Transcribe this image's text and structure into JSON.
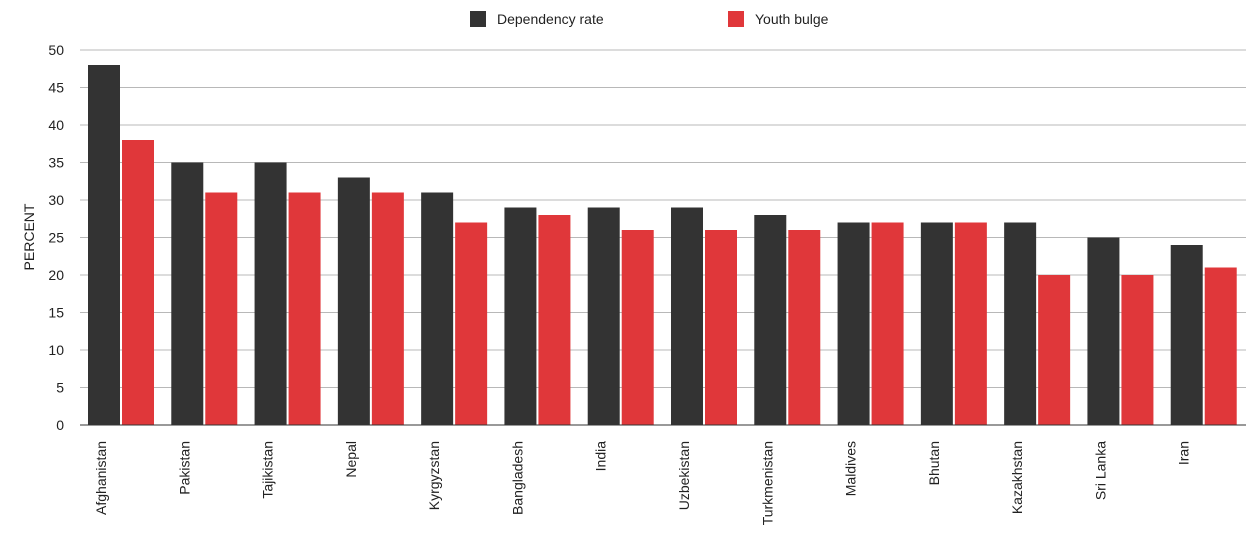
{
  "chart_data": {
    "type": "bar",
    "title": "",
    "xlabel": "",
    "ylabel": "PERCENT",
    "ylim": [
      0,
      50
    ],
    "yticks": [
      0,
      5,
      10,
      15,
      20,
      25,
      30,
      35,
      40,
      45,
      50
    ],
    "grid": true,
    "legend_position": "top-center",
    "categories": [
      "Afghanistan",
      "Pakistan",
      "Tajikistan",
      "Nepal",
      "Kyrgyzstan",
      "Bangladesh",
      "India",
      "Uzbekistan",
      "Turkmenistan",
      "Maldives",
      "Bhutan",
      "Kazakhstan",
      "Sri Lanka",
      "Iran"
    ],
    "series": [
      {
        "name": "Dependency rate",
        "color": "#333333",
        "values": [
          48,
          35,
          35,
          33,
          31,
          29,
          29,
          29,
          28,
          27,
          27,
          27,
          25,
          24
        ]
      },
      {
        "name": "Youth bulge",
        "color": "#e0373a",
        "values": [
          38,
          31,
          31,
          31,
          27,
          28,
          26,
          26,
          26,
          27,
          27,
          20,
          20,
          21
        ]
      }
    ]
  }
}
